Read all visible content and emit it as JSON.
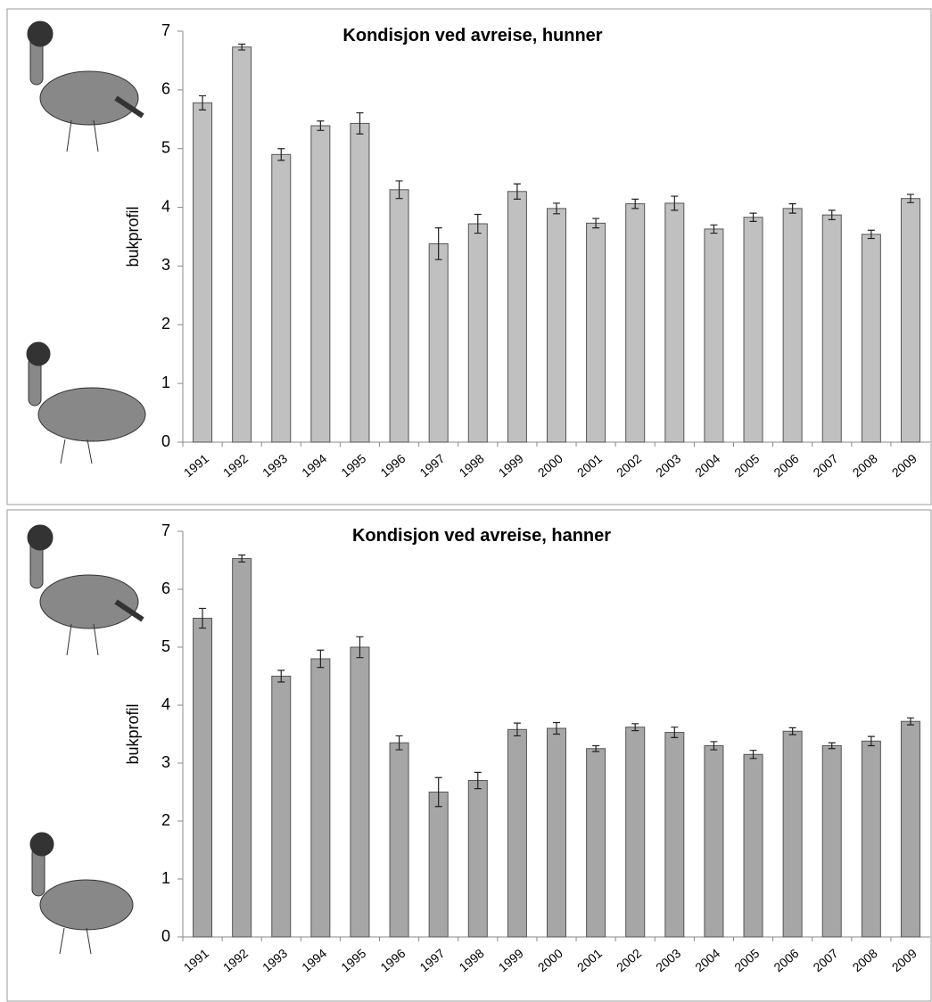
{
  "chart_data": [
    {
      "type": "bar",
      "title": "Kondisjon ved avreise, hunner",
      "y_label": "bukprofil",
      "categories": [
        "1991",
        "1992",
        "1993",
        "1994",
        "1995",
        "1996",
        "1997",
        "1998",
        "1999",
        "2000",
        "2001",
        "2002",
        "2003",
        "2004",
        "2005",
        "2006",
        "2007",
        "2008",
        "2009"
      ],
      "values": [
        5.78,
        6.73,
        4.9,
        5.39,
        5.43,
        4.3,
        3.38,
        3.72,
        4.27,
        3.98,
        3.73,
        4.06,
        4.07,
        3.63,
        3.83,
        3.98,
        3.87,
        3.54,
        4.15
      ],
      "errors": [
        0.12,
        0.05,
        0.1,
        0.08,
        0.18,
        0.15,
        0.27,
        0.16,
        0.13,
        0.09,
        0.08,
        0.08,
        0.12,
        0.07,
        0.07,
        0.08,
        0.08,
        0.07,
        0.07
      ],
      "color": "#c0c0c0",
      "ylim": [
        0,
        7
      ],
      "yticks": [
        0,
        1,
        2,
        3,
        4,
        5,
        6,
        7
      ]
    },
    {
      "type": "bar",
      "title": "Kondisjon ved avreise, hanner",
      "y_label": "bukprofil",
      "categories": [
        "1991",
        "1992",
        "1993",
        "1994",
        "1995",
        "1996",
        "1997",
        "1998",
        "1999",
        "2000",
        "2001",
        "2002",
        "2003",
        "2004",
        "2005",
        "2006",
        "2007",
        "2008",
        "2009"
      ],
      "values": [
        5.5,
        6.53,
        4.5,
        4.8,
        5.0,
        3.35,
        2.5,
        2.7,
        3.58,
        3.6,
        3.25,
        3.62,
        3.53,
        3.3,
        3.15,
        3.55,
        3.3,
        3.38,
        3.72
      ],
      "errors": [
        0.17,
        0.06,
        0.1,
        0.15,
        0.18,
        0.12,
        0.25,
        0.14,
        0.11,
        0.1,
        0.05,
        0.06,
        0.09,
        0.07,
        0.07,
        0.06,
        0.05,
        0.08,
        0.06
      ],
      "color": "#a6a6a6",
      "ylim": [
        0,
        7
      ],
      "yticks": [
        0,
        1,
        2,
        3,
        4,
        5,
        6,
        7
      ]
    }
  ]
}
